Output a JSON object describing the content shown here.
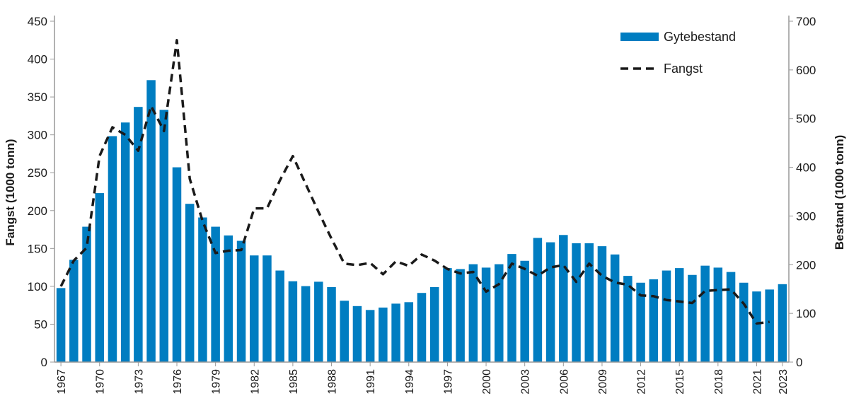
{
  "chart_data": {
    "type": "bar+line",
    "title": "",
    "categories": [
      "1967",
      "1968",
      "1969",
      "1970",
      "1971",
      "1972",
      "1973",
      "1974",
      "1975",
      "1976",
      "1977",
      "1978",
      "1979",
      "1980",
      "1981",
      "1982",
      "1983",
      "1984",
      "1985",
      "1986",
      "1987",
      "1988",
      "1989",
      "1990",
      "1991",
      "1992",
      "1993",
      "1994",
      "1995",
      "1996",
      "1997",
      "1998",
      "1999",
      "2000",
      "2001",
      "2002",
      "2003",
      "2004",
      "2005",
      "2006",
      "2007",
      "2008",
      "2009",
      "2010",
      "2011",
      "2012",
      "2013",
      "2014",
      "2015",
      "2016",
      "2017",
      "2018",
      "2019",
      "2020",
      "2021",
      "2022",
      "2023"
    ],
    "x_tick_labels": [
      "1967",
      "1970",
      "1973",
      "1976",
      "1979",
      "1982",
      "1985",
      "1988",
      "1991",
      "1994",
      "1997",
      "2000",
      "2003",
      "2006",
      "2009",
      "2012",
      "2015",
      "2018",
      "2021",
      "2023"
    ],
    "series": [
      {
        "name": "Gytebestand",
        "type": "bar",
        "axis": "right",
        "color": "#007dc1",
        "values": [
          152,
          210,
          278,
          347,
          464,
          492,
          524,
          579,
          518,
          400,
          325,
          297,
          278,
          260,
          249,
          219,
          219,
          188,
          166,
          156,
          165,
          154,
          126,
          115,
          107,
          112,
          120,
          123,
          142,
          154,
          193,
          191,
          201,
          194,
          201,
          222,
          208,
          255,
          246,
          261,
          244,
          244,
          238,
          221,
          177,
          163,
          170,
          188,
          193,
          179,
          198,
          194,
          185,
          163,
          145,
          149,
          160
        ]
      },
      {
        "name": "Fangst",
        "type": "line",
        "axis": "left",
        "color": "#1a1a1a",
        "dash": true,
        "values": [
          100,
          134,
          151,
          272,
          310,
          300,
          279,
          338,
          305,
          425,
          242,
          186,
          144,
          147,
          148,
          203,
          203,
          240,
          272,
          235,
          198,
          163,
          130,
          128,
          131,
          116,
          133,
          127,
          142,
          134,
          123,
          117,
          119,
          93,
          103,
          130,
          123,
          114,
          125,
          128,
          106,
          130,
          114,
          105,
          102,
          88,
          87,
          82,
          80,
          78,
          94,
          95,
          96,
          77,
          51,
          53,
          null
        ]
      }
    ],
    "ylabel": "Fangst (1000 tonn)",
    "ylim": [
      0,
      450
    ],
    "yticks": [
      0,
      50,
      100,
      150,
      200,
      250,
      300,
      350,
      400,
      450
    ],
    "y2label": "Bestand (1000 tonn)",
    "y2lim": [
      0,
      700
    ],
    "y2ticks": [
      0,
      100,
      200,
      300,
      400,
      500,
      600,
      700
    ],
    "grid": false,
    "legend": "top-right"
  }
}
